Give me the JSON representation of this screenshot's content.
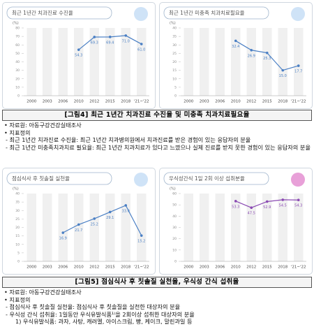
{
  "chart_data": [
    {
      "type": "line",
      "title": "최근 1년간 치과진료 수진율",
      "y_label": "(%)",
      "categories": [
        "2000",
        "2003",
        "2006",
        "2010",
        "2012",
        "2015",
        "2018",
        "'21~'22"
      ],
      "values": [
        null,
        null,
        null,
        54.3,
        69.3,
        69.4,
        71.0,
        61.0
      ],
      "value_labels": [
        null,
        null,
        null,
        "54.3",
        "69.3",
        "69.4",
        "71.0",
        "61.0"
      ],
      "color": "#4a7fc4",
      "ylim": [
        0,
        80
      ],
      "yticks": [
        0,
        10,
        20,
        30,
        40,
        50,
        60,
        70,
        80
      ]
    },
    {
      "type": "line",
      "title": "최근 1년간 미충족 치과치료필요율",
      "y_label": "(%)",
      "categories": [
        "2000",
        "2003",
        "2006",
        "2010",
        "2012",
        "2015",
        "2018",
        "'21~'22"
      ],
      "values": [
        null,
        null,
        null,
        32.4,
        26.9,
        25.3,
        15.0,
        17.7
      ],
      "value_labels": [
        null,
        null,
        null,
        "32.4",
        "26.9",
        "25.3",
        "15.0",
        "17.7"
      ],
      "color": "#4a7fc4",
      "ylim": [
        0,
        40
      ],
      "yticks": [
        0,
        5,
        10,
        15,
        20,
        25,
        30,
        35,
        40
      ]
    },
    {
      "type": "line",
      "title": "점심식사 후 칫솔질 실천율",
      "y_label": "(%)",
      "categories": [
        "2000",
        "2003",
        "2006",
        "2010",
        "2012",
        "2015",
        "2018",
        "'21~'22"
      ],
      "values": [
        null,
        null,
        16.9,
        21.7,
        25.2,
        29.1,
        33.0,
        15.2
      ],
      "value_labels": [
        null,
        null,
        "16.9",
        "21.7",
        "25.2",
        "29.1",
        "33.0",
        "15.2"
      ],
      "color": "#4a7fc4",
      "ylim": [
        0,
        40
      ],
      "yticks": [
        0,
        5,
        10,
        15,
        20,
        25,
        30,
        35,
        40
      ]
    },
    {
      "type": "line",
      "title": "우식성간식 1일 2회 이상 섭취분율",
      "y_label": "(%)",
      "categories": [
        "2000",
        "2003",
        "2006",
        "2010",
        "2012",
        "2015",
        "2018",
        "'21~'22"
      ],
      "values": [
        null,
        null,
        null,
        53.3,
        47.5,
        52.9,
        54.5,
        54.3
      ],
      "value_labels": [
        null,
        null,
        null,
        "53.3",
        "47.5",
        "52.9",
        "54.5",
        "54.3"
      ],
      "color": "#8b4bb3",
      "ylim": [
        0,
        60
      ],
      "yticks": [
        0,
        10,
        20,
        30,
        40,
        50,
        60
      ]
    }
  ],
  "figures": [
    {
      "caption": "[그림4] 최근 1년간 치과진료 수진율 및 미충족 치과치료필요율",
      "source": "• 자료원: 아동구강건강실태조사",
      "definition": "• 지표정의",
      "items": [
        "- 최근 1년간 치과진료 수진율: 최근 1년간 치과병의원에서 치과진료를 받은 경험이 있는 응답자의 분율",
        "- 최근 1년간 미충족치과치료 필요율: 최근 1년간 치과치료가 있다고 느꼈으나 실제 진료를 받지 못한 경험이 있는 응답자의 분율"
      ]
    },
    {
      "caption": "[그림5] 점심식사 후 칫솔질 실천율, 우식성 간식 섭취율",
      "source": "• 자료원: 아동구강건강실태조사",
      "definition": "• 지표정의",
      "items": [
        "- 점심식사 후 칫솔질 실천율: 점심식사 후 칫솔질을 실천한 대상자의 분율",
        "- 우식성 간식 섭취율: 1일동안 우식유발식품¹⁾을 2회이상 섭취한 대상자의 분율"
      ],
      "footnote": "1) 우식유발식품: 과자, 사탕, 캐러멜, 아이스크림, 빵, 케이크, 말린과일 등"
    }
  ]
}
